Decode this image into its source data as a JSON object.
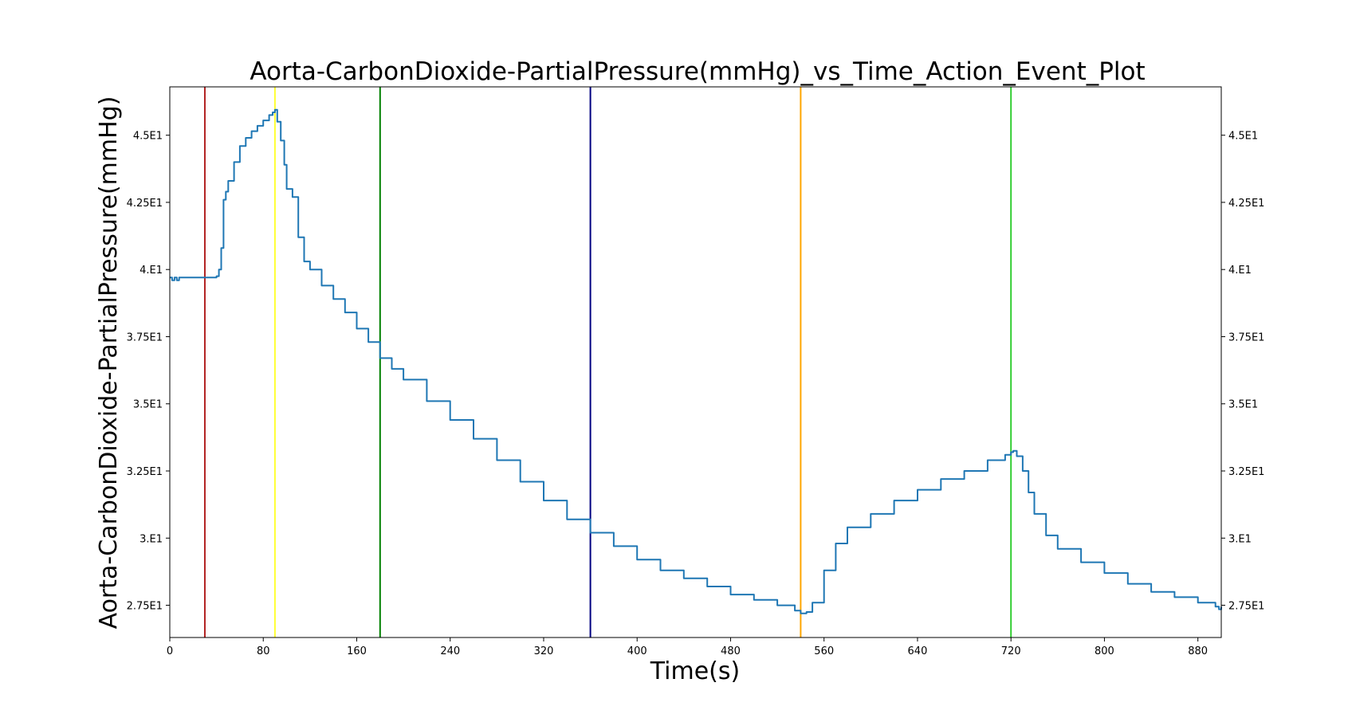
{
  "chart_data": {
    "type": "line",
    "title": "Aorta-CarbonDioxide-PartialPressure(mmHg)_vs_Time_Action_Event_Plot",
    "xlabel": "Time(s)",
    "ylabel": "Aorta-CarbonDioxide-PartialPressure(mmHg)",
    "xlim": [
      0,
      900
    ],
    "ylim": [
      26.3,
      46.8
    ],
    "x_ticks": [
      0,
      80,
      160,
      240,
      320,
      400,
      480,
      560,
      640,
      720,
      800,
      880
    ],
    "x_tick_labels": [
      "0",
      "80",
      "160",
      "240",
      "320",
      "400",
      "480",
      "560",
      "640",
      "720",
      "800",
      "880"
    ],
    "y_ticks": [
      27.5,
      30,
      32.5,
      35,
      37.5,
      40,
      42.5,
      45
    ],
    "y_tick_labels": [
      "2.75E1",
      "3.E1",
      "3.25E1",
      "3.5E1",
      "3.75E1",
      "4.E1",
      "4.25E1",
      "4.5E1"
    ],
    "grid": false,
    "line_color": "#1f77b4",
    "event_lines": [
      {
        "x": 30,
        "color": "#b22222"
      },
      {
        "x": 90,
        "color": "#ffff33"
      },
      {
        "x": 180,
        "color": "#008000"
      },
      {
        "x": 360,
        "color": "#000080"
      },
      {
        "x": 540,
        "color": "#ffa500"
      },
      {
        "x": 720,
        "color": "#32cd32"
      }
    ],
    "series": [
      {
        "x": [
          0,
          2,
          4,
          6,
          8,
          10,
          30,
          38,
          40,
          42,
          44,
          46,
          48,
          50,
          55,
          60,
          65,
          70,
          75,
          80,
          85,
          88,
          90,
          92,
          95,
          98,
          100,
          105,
          110,
          115,
          120,
          130,
          140,
          150,
          160,
          170,
          180,
          190,
          200,
          220,
          240,
          260,
          280,
          300,
          320,
          340,
          360,
          380,
          400,
          420,
          440,
          460,
          480,
          500,
          520,
          535,
          540,
          545,
          550,
          560,
          570,
          580,
          600,
          620,
          640,
          660,
          680,
          700,
          715,
          720,
          722,
          725,
          730,
          735,
          740,
          750,
          760,
          780,
          800,
          820,
          840,
          860,
          880,
          895,
          898,
          900
        ],
        "y": [
          39.7,
          39.6,
          39.7,
          39.6,
          39.7,
          39.7,
          39.7,
          39.7,
          39.75,
          40.0,
          40.8,
          42.6,
          42.9,
          43.3,
          44.0,
          44.6,
          44.9,
          45.15,
          45.35,
          45.55,
          45.75,
          45.85,
          45.95,
          45.5,
          44.8,
          43.9,
          43.0,
          42.7,
          41.2,
          40.3,
          40.0,
          39.4,
          38.9,
          38.4,
          37.8,
          37.3,
          36.7,
          36.3,
          35.9,
          35.1,
          34.4,
          33.7,
          32.9,
          32.1,
          31.4,
          30.7,
          30.2,
          29.7,
          29.2,
          28.8,
          28.5,
          28.2,
          27.9,
          27.7,
          27.5,
          27.3,
          27.2,
          27.25,
          27.6,
          28.8,
          29.8,
          30.4,
          30.9,
          31.4,
          31.8,
          32.2,
          32.5,
          32.9,
          33.1,
          33.2,
          33.25,
          33.05,
          32.5,
          31.7,
          30.9,
          30.1,
          29.6,
          29.1,
          28.7,
          28.3,
          28.0,
          27.8,
          27.6,
          27.45,
          27.35,
          27.45
        ]
      }
    ]
  }
}
